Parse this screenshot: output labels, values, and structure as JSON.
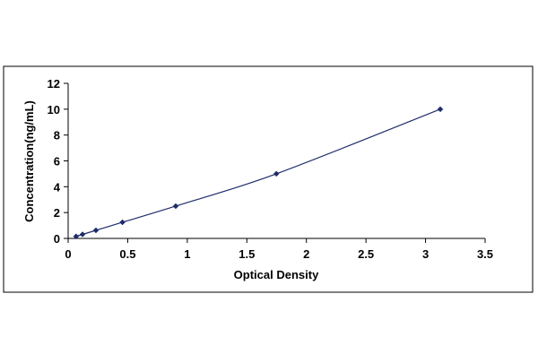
{
  "chart_data": {
    "type": "scatter",
    "title": "",
    "xlabel": "Optical Density",
    "ylabel": "Concentration(ng/mL)",
    "xlim": [
      0,
      3.5
    ],
    "ylim": [
      0,
      12
    ],
    "x_ticks": [
      "0",
      "0.5",
      "1",
      "1.5",
      "2",
      "2.5",
      "3",
      "3.5"
    ],
    "y_ticks": [
      "0",
      "2",
      "4",
      "6",
      "8",
      "10",
      "12"
    ],
    "grid": false,
    "legend": "none",
    "colors": {
      "series": "#1f2d6b",
      "axis": "#000000",
      "frame": "#000000",
      "background": "#ffffff"
    },
    "series": [
      {
        "marker": "diamond",
        "line": "smooth",
        "x": [
          0.067,
          0.121,
          0.233,
          0.456,
          0.903,
          1.748,
          3.124
        ],
        "y": [
          0.156,
          0.313,
          0.625,
          1.25,
          2.5,
          5,
          10
        ]
      }
    ]
  }
}
